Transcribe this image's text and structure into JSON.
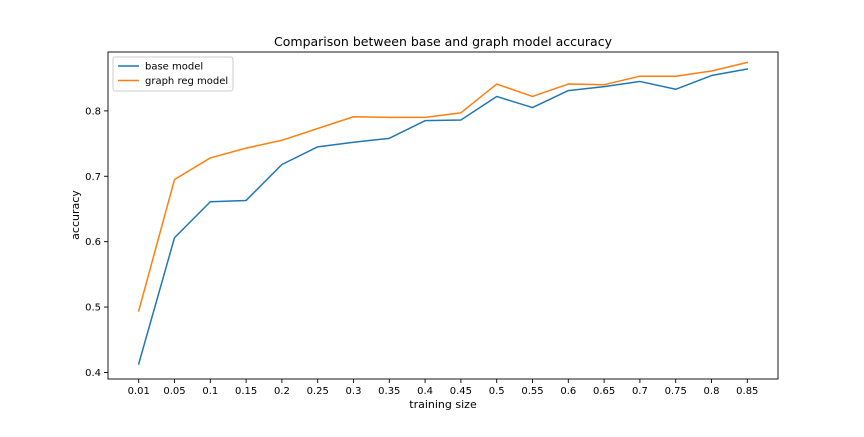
{
  "chart_data": {
    "type": "line",
    "title": "Comparison between base and graph model accuracy",
    "xlabel": "training size",
    "ylabel": "accuracy",
    "x": [
      "0.01",
      "0.05",
      "0.1",
      "0.15",
      "0.2",
      "0.25",
      "0.3",
      "0.35",
      "0.4",
      "0.45",
      "0.5",
      "0.55",
      "0.6",
      "0.65",
      "0.7",
      "0.75",
      "0.8",
      "0.85"
    ],
    "ylim": [
      0.39,
      0.89
    ],
    "yticks": [
      "0.4",
      "0.5",
      "0.6",
      "0.7",
      "0.8"
    ],
    "grid": false,
    "legend_position": "top-left",
    "series": [
      {
        "name": "base model",
        "color": "#1f77b4",
        "values": [
          0.413,
          0.606,
          0.661,
          0.663,
          0.718,
          0.745,
          0.752,
          0.758,
          0.785,
          0.786,
          0.822,
          0.805,
          0.831,
          0.837,
          0.845,
          0.833,
          0.854,
          0.864
        ]
      },
      {
        "name": "graph reg model",
        "color": "#ff7f0e",
        "values": [
          0.494,
          0.695,
          0.728,
          0.743,
          0.755,
          0.773,
          0.791,
          0.79,
          0.79,
          0.797,
          0.841,
          0.822,
          0.841,
          0.84,
          0.853,
          0.853,
          0.861,
          0.874
        ]
      }
    ]
  }
}
